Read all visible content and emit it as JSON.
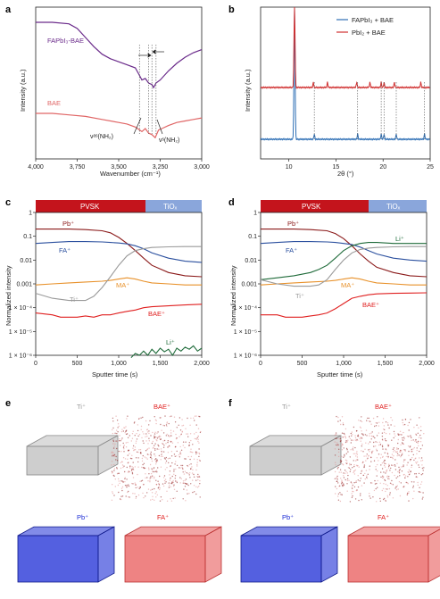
{
  "panels": {
    "a": {
      "label": "a",
      "xlabel": "Wavenumber (cm⁻¹)",
      "ylabel": "Intensity (a.u.)",
      "xticks": [
        "4,000",
        "3,750",
        "3,500",
        "3,250",
        "3,000"
      ],
      "series_labels": [
        "FAPbI₃-BAE",
        "BAE"
      ],
      "annotations": [
        "νᵃˢ(NH₂)",
        "νˢ(NH₂)"
      ]
    },
    "b": {
      "label": "b",
      "xlabel": "2θ (°)",
      "ylabel": "Intensity (a.u.)",
      "xticks": [
        "10",
        "15",
        "20",
        "25"
      ],
      "legend": [
        "FAPbI₃ + BAE",
        "PbI₂ + BAE"
      ]
    },
    "c": {
      "label": "c",
      "xlabel": "Sputter time (s)",
      "ylabel": "Normalized intensity",
      "xticks": [
        "0",
        "500",
        "1,000",
        "1,500",
        "2,000"
      ],
      "yticks": [
        "1",
        "0.1",
        "0.01",
        "0.001",
        "1 × 10⁻⁴",
        "1 × 10⁻⁵",
        "1 × 10⁻⁶"
      ],
      "bar_left": "PVSK",
      "bar_right": "TiOₓ",
      "ion_labels": [
        "Pb⁺",
        "FA⁺",
        "MA⁺",
        "Ti⁺",
        "BAE⁺",
        "Li⁺"
      ]
    },
    "d": {
      "label": "d",
      "xlabel": "Sputter time (s)",
      "ylabel": "Normalized intensity",
      "xticks": [
        "0",
        "500",
        "1,000",
        "1,500",
        "2,000"
      ],
      "yticks": [
        "1",
        "0.1",
        "0.01",
        "0.001",
        "1 × 10⁻⁴",
        "1 × 10⁻⁵",
        "1 × 10⁻⁶"
      ],
      "bar_left": "PVSK",
      "bar_right": "TiOₓ",
      "ion_labels": [
        "Pb⁺",
        "FA⁺",
        "Li⁺",
        "MA⁺",
        "Ti⁺",
        "BAE⁺"
      ]
    },
    "e": {
      "label": "e",
      "cube_labels": [
        "Ti⁺",
        "BAE⁺",
        "Pb⁺",
        "FA⁺"
      ]
    },
    "f": {
      "label": "f",
      "cube_labels": [
        "Ti⁺",
        "BAE⁺",
        "Pb⁺",
        "FA⁺"
      ]
    }
  },
  "colors": {
    "fapbi3_bae": "#6a2a8a",
    "bae": "#e06666",
    "xrd_fapbi3": "#2e6fb5",
    "xrd_pbi2": "#d03030",
    "pb": "#8b1a1a",
    "fa": "#2a4f9e",
    "ma": "#e8912a",
    "ti": "#9a9a9a",
    "baeion": "#e02020",
    "li": "#1f6b3a",
    "pvsk_bar": "#c4141c",
    "tiox_bar": "#8aa6db",
    "cube_ti": "#b8b8b8",
    "cube_pb": "#1b2bd6",
    "cube_fa": "#e85a5a"
  },
  "chart_data": [
    {
      "panel": "a",
      "type": "line",
      "title": "",
      "xlabel": "Wavenumber (cm⁻¹)",
      "ylabel": "Intensity (a.u.)",
      "xlim": [
        4000,
        3000
      ],
      "series": [
        {
          "name": "FAPbI₃-BAE",
          "x": [
            4000,
            3900,
            3800,
            3750,
            3700,
            3650,
            3600,
            3550,
            3500,
            3450,
            3400,
            3375,
            3360,
            3340,
            3320,
            3300,
            3290,
            3275,
            3250,
            3200,
            3150,
            3100,
            3050,
            3000
          ],
          "values": [
            0.9,
            0.9,
            0.89,
            0.86,
            0.8,
            0.74,
            0.69,
            0.66,
            0.64,
            0.62,
            0.6,
            0.55,
            0.52,
            0.53,
            0.5,
            0.49,
            0.47,
            0.5,
            0.52,
            0.58,
            0.63,
            0.67,
            0.7,
            0.72
          ]
        },
        {
          "name": "BAE",
          "x": [
            4000,
            3900,
            3800,
            3700,
            3600,
            3500,
            3450,
            3400,
            3360,
            3340,
            3320,
            3300,
            3280,
            3260,
            3240,
            3200,
            3150,
            3100,
            3050,
            3000
          ],
          "values": [
            0.3,
            0.3,
            0.29,
            0.28,
            0.26,
            0.24,
            0.23,
            0.21,
            0.18,
            0.2,
            0.17,
            0.16,
            0.14,
            0.19,
            0.2,
            0.22,
            0.24,
            0.25,
            0.26,
            0.27
          ]
        }
      ]
    },
    {
      "panel": "b",
      "type": "line",
      "title": "",
      "xlabel": "2θ (°)",
      "ylabel": "Intensity (a.u.)",
      "xlim": [
        7,
        25
      ],
      "series": [
        {
          "name": "FAPbI₃ + BAE",
          "peaks": [
            10.6,
            12.7,
            17.3,
            19.8,
            20.1,
            21.4,
            24.4
          ]
        },
        {
          "name": "PbI₂ + BAE",
          "peaks": [
            10.6,
            12.6,
            14.1,
            17.2,
            18.6,
            19.8,
            20.1,
            21.2,
            24.0
          ]
        }
      ]
    },
    {
      "panel": "c",
      "type": "line",
      "title": "",
      "xlabel": "Sputter time (s)",
      "ylabel": "Normalized intensity",
      "xlim": [
        0,
        2000
      ],
      "ylim": [
        1e-06,
        1
      ],
      "yscale": "log",
      "series": [
        {
          "name": "Pb⁺",
          "x": [
            0,
            200,
            400,
            600,
            800,
            900,
            1000,
            1100,
            1200,
            1300,
            1400,
            1600,
            1800,
            2000
          ],
          "values": [
            0.2,
            0.2,
            0.2,
            0.19,
            0.17,
            0.14,
            0.09,
            0.05,
            0.025,
            0.012,
            0.006,
            0.003,
            0.0022,
            0.002
          ]
        },
        {
          "name": "FA⁺",
          "x": [
            0,
            200,
            400,
            600,
            800,
            900,
            1000,
            1100,
            1200,
            1300,
            1400,
            1600,
            1800,
            2000
          ],
          "values": [
            0.05,
            0.055,
            0.06,
            0.06,
            0.058,
            0.055,
            0.052,
            0.048,
            0.04,
            0.03,
            0.02,
            0.012,
            0.009,
            0.008
          ]
        },
        {
          "name": "MA⁺",
          "x": [
            0,
            200,
            400,
            600,
            800,
            900,
            1000,
            1100,
            1200,
            1300,
            1400,
            1600,
            1800,
            2000
          ],
          "values": [
            0.0009,
            0.001,
            0.0011,
            0.0012,
            0.0013,
            0.0014,
            0.0016,
            0.0018,
            0.0016,
            0.0013,
            0.0011,
            0.001,
            0.0009,
            0.0009
          ]
        },
        {
          "name": "Ti⁺",
          "x": [
            0,
            200,
            400,
            600,
            700,
            800,
            900,
            1000,
            1100,
            1200,
            1300,
            1400,
            1600,
            1800,
            2000
          ],
          "values": [
            0.0004,
            0.00025,
            0.0002,
            0.0002,
            0.0003,
            0.0007,
            0.002,
            0.006,
            0.015,
            0.025,
            0.03,
            0.034,
            0.036,
            0.037,
            0.037
          ]
        },
        {
          "name": "BAE⁺",
          "x": [
            0,
            200,
            300,
            400,
            500,
            600,
            700,
            800,
            900,
            1000,
            1100,
            1200,
            1300,
            1400,
            1600,
            1800,
            2000
          ],
          "values": [
            6e-05,
            5e-05,
            4e-05,
            4e-05,
            4e-05,
            4.5e-05,
            4e-05,
            5e-05,
            5e-05,
            6e-05,
            7e-05,
            8e-05,
            0.0001,
            0.00011,
            0.00012,
            0.00013,
            0.00014
          ]
        },
        {
          "name": "Li⁺",
          "x": [
            1150,
            1200,
            1250,
            1300,
            1350,
            1400,
            1450,
            1500,
            1550,
            1600,
            1650,
            1700,
            1750,
            1800,
            1850,
            1900,
            1950,
            2000
          ],
          "values": [
            8e-07,
            1.2e-06,
            1e-06,
            1.5e-06,
            1e-06,
            1.8e-06,
            1.2e-06,
            2e-06,
            1.4e-06,
            1.8e-06,
            1e-06,
            2e-06,
            1.5e-06,
            2.2e-06,
            1.8e-06,
            2.5e-06,
            1.5e-06,
            2e-06
          ]
        }
      ]
    },
    {
      "panel": "d",
      "type": "line",
      "title": "",
      "xlabel": "Sputter time (s)",
      "ylabel": "Normalized intensity",
      "xlim": [
        0,
        2000
      ],
      "ylim": [
        1e-06,
        1
      ],
      "yscale": "log",
      "series": [
        {
          "name": "Pb⁺",
          "x": [
            0,
            200,
            400,
            600,
            800,
            900,
            1000,
            1100,
            1200,
            1300,
            1400,
            1600,
            1800,
            2000
          ],
          "values": [
            0.2,
            0.2,
            0.2,
            0.19,
            0.17,
            0.13,
            0.08,
            0.04,
            0.018,
            0.009,
            0.005,
            0.003,
            0.0022,
            0.002
          ]
        },
        {
          "name": "FA⁺",
          "x": [
            0,
            200,
            400,
            600,
            800,
            900,
            1000,
            1100,
            1200,
            1300,
            1400,
            1600,
            1800,
            2000
          ],
          "values": [
            0.05,
            0.055,
            0.06,
            0.06,
            0.058,
            0.055,
            0.05,
            0.045,
            0.035,
            0.025,
            0.018,
            0.012,
            0.01,
            0.009
          ]
        },
        {
          "name": "Li⁺",
          "x": [
            0,
            200,
            400,
            600,
            700,
            800,
            900,
            1000,
            1100,
            1200,
            1300,
            1400,
            1600,
            1800,
            2000
          ],
          "values": [
            0.0015,
            0.0018,
            0.0022,
            0.003,
            0.004,
            0.006,
            0.012,
            0.025,
            0.04,
            0.05,
            0.055,
            0.055,
            0.05,
            0.05,
            0.05
          ]
        },
        {
          "name": "MA⁺",
          "x": [
            0,
            200,
            400,
            600,
            800,
            900,
            1000,
            1100,
            1200,
            1300,
            1400,
            1600,
            1800,
            2000
          ],
          "values": [
            0.0009,
            0.001,
            0.0011,
            0.0012,
            0.0013,
            0.0014,
            0.0016,
            0.0018,
            0.0016,
            0.0013,
            0.0011,
            0.001,
            0.0009,
            0.0009
          ]
        },
        {
          "name": "Ti⁺",
          "x": [
            0,
            200,
            400,
            600,
            700,
            800,
            900,
            1000,
            1100,
            1200,
            1300,
            1400,
            1600,
            1800,
            2000
          ],
          "values": [
            0.0015,
            0.001,
            0.0008,
            0.0008,
            0.0009,
            0.0015,
            0.004,
            0.01,
            0.02,
            0.028,
            0.032,
            0.034,
            0.036,
            0.037,
            0.037
          ]
        },
        {
          "name": "BAE⁺",
          "x": [
            0,
            200,
            300,
            400,
            500,
            600,
            700,
            800,
            900,
            1000,
            1100,
            1200,
            1300,
            1400,
            1600,
            1800,
            2000
          ],
          "values": [
            5e-05,
            5e-05,
            4e-05,
            4e-05,
            4e-05,
            4.5e-05,
            5e-05,
            6e-05,
            9e-05,
            0.00015,
            0.00025,
            0.0003,
            0.00035,
            0.00038,
            0.0004,
            0.00041,
            0.00042
          ]
        }
      ]
    }
  ]
}
